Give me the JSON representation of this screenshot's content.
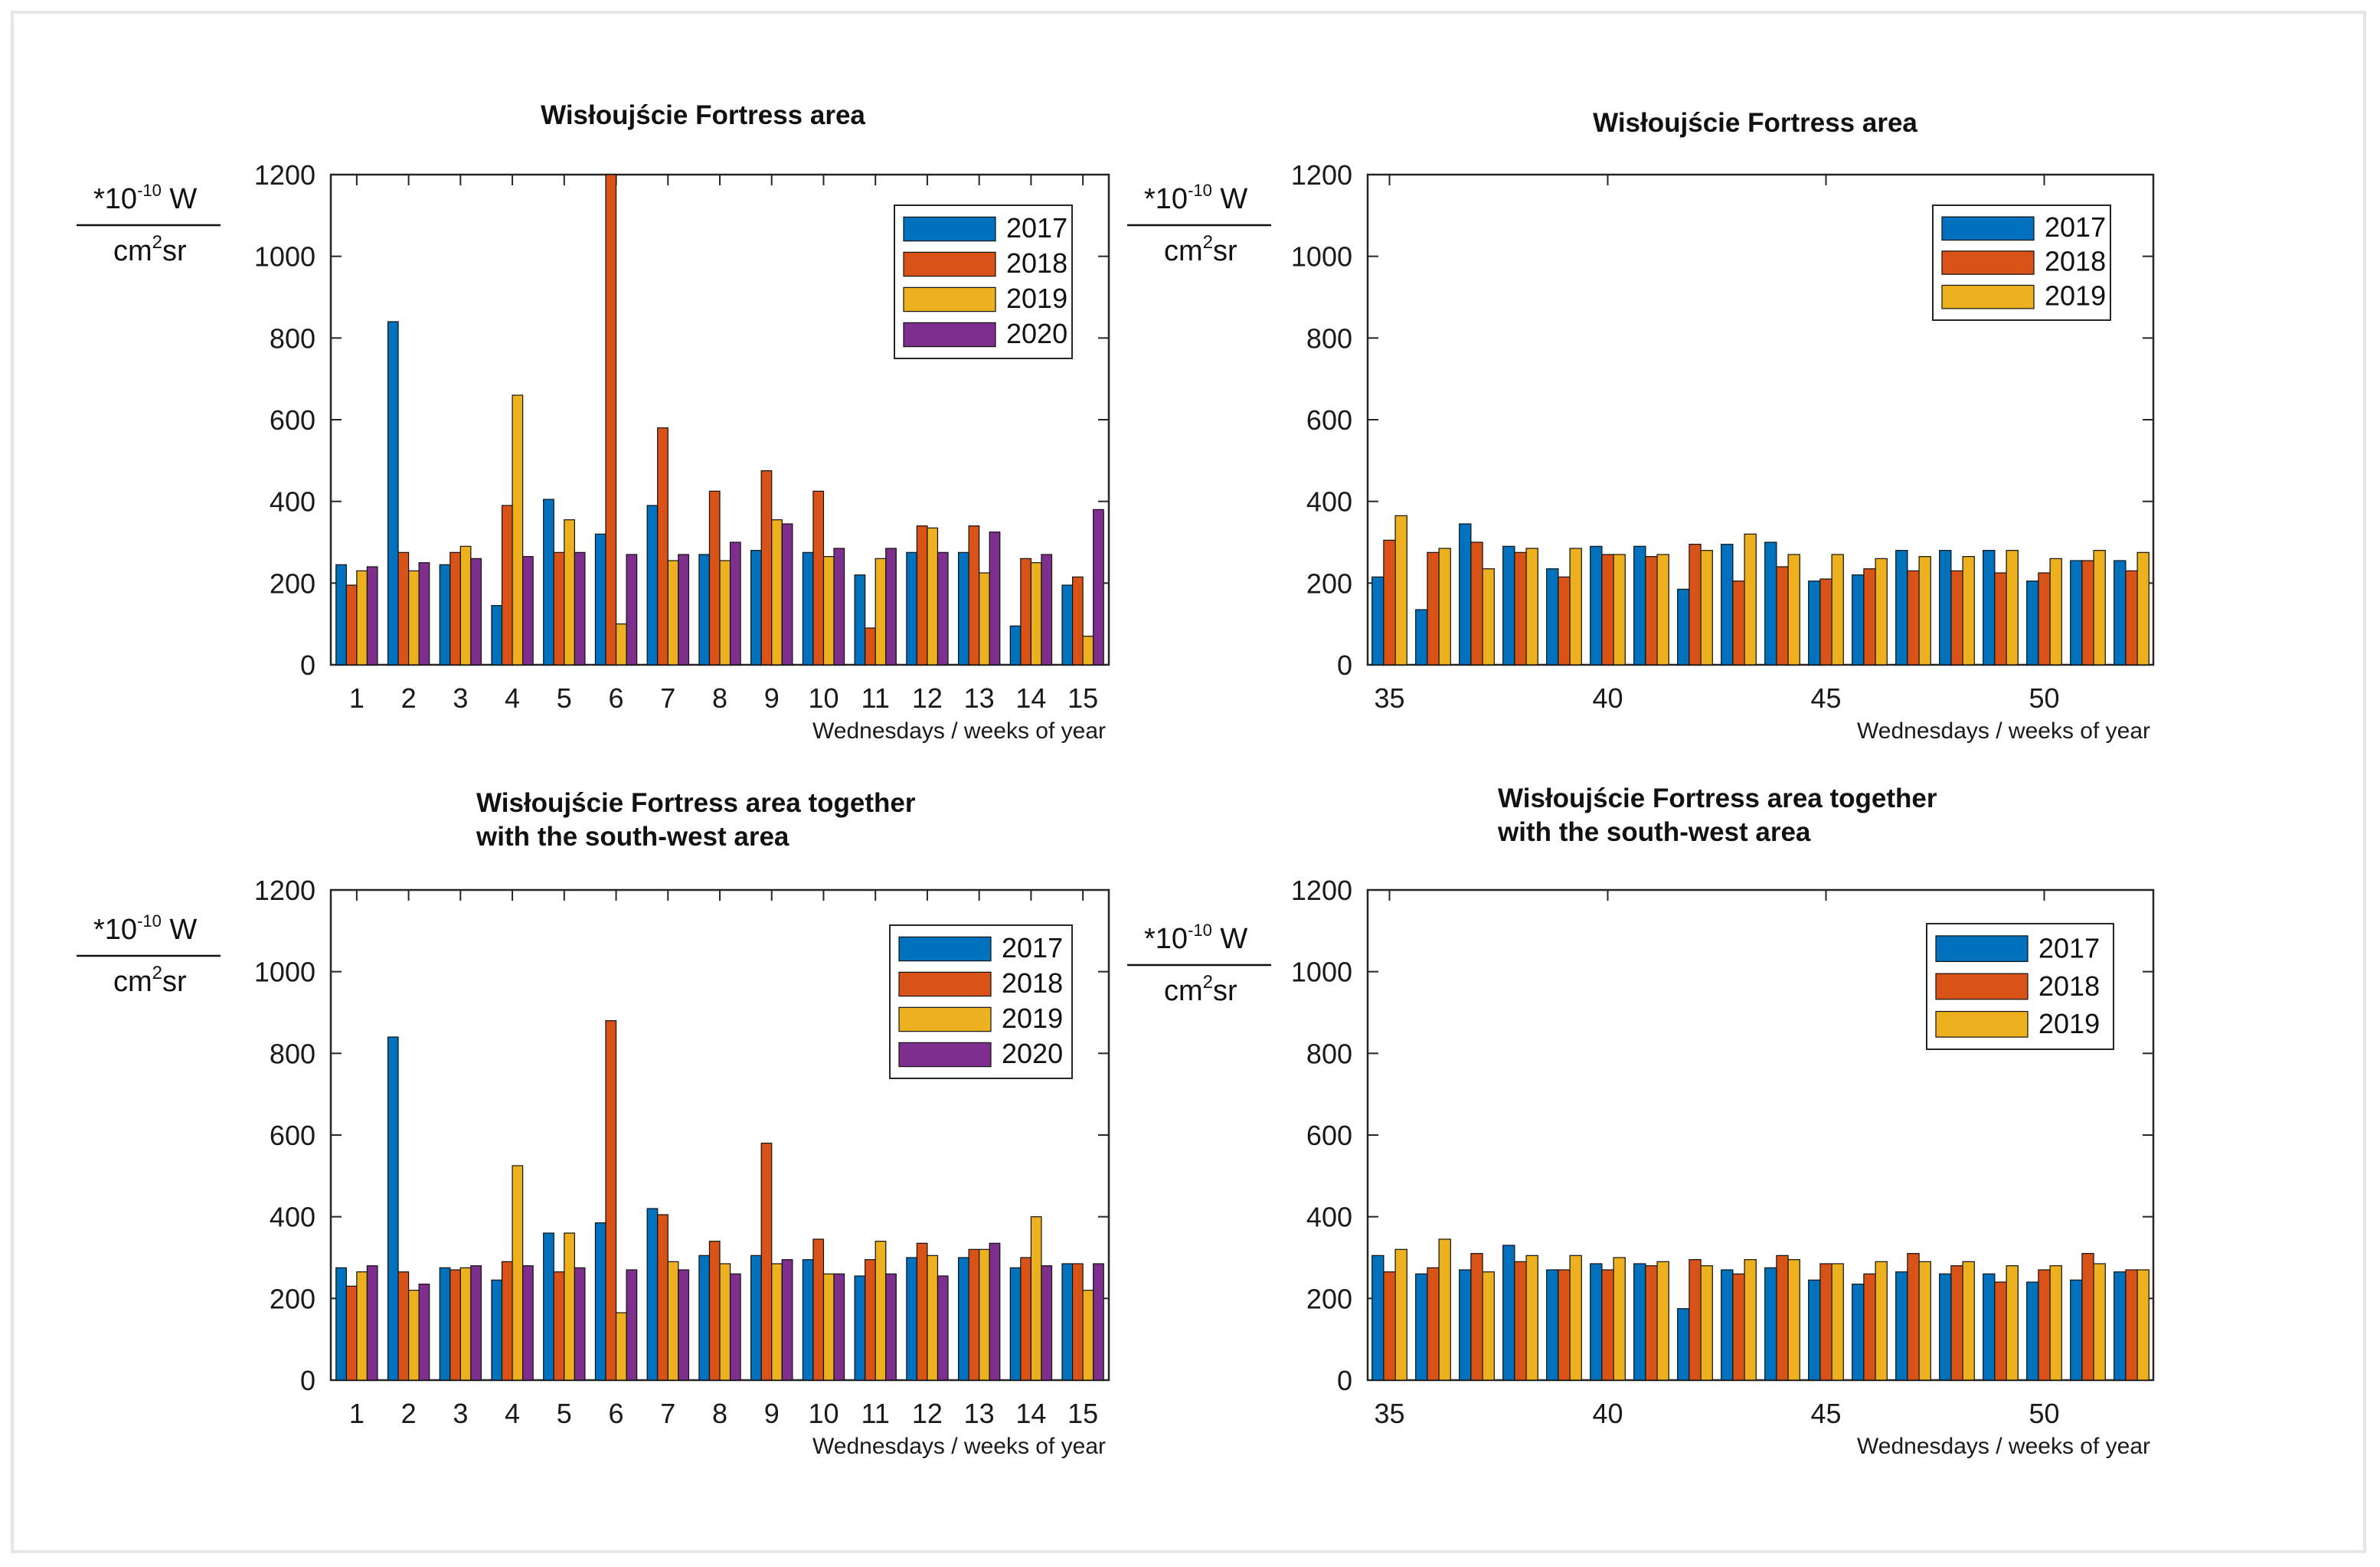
{
  "colors": {
    "2017": "#0072BD",
    "2018": "#D95319",
    "2019": "#EDB120",
    "2020": "#7E2F8E"
  },
  "unit_label": {
    "prefix": "*10",
    "exponent": "-10",
    "unit": " W",
    "denominator_base": "cm",
    "denominator_exp": "2",
    "denominator_tail": "sr"
  },
  "chart_data": [
    {
      "type": "bar",
      "title": [
        "Wisłoujście Fortress area"
      ],
      "xlabel": "Wednesdays / weeks of year",
      "ylim": [
        0,
        1200
      ],
      "yticks": [
        0,
        200,
        400,
        600,
        800,
        1000,
        1200
      ],
      "categories": [
        1,
        2,
        3,
        4,
        5,
        6,
        7,
        8,
        9,
        10,
        11,
        12,
        13,
        14,
        15
      ],
      "xticks": [
        1,
        2,
        3,
        4,
        5,
        6,
        7,
        8,
        9,
        10,
        11,
        12,
        13,
        14,
        15
      ],
      "legend": "top-right",
      "series": [
        {
          "name": "2017",
          "values": [
            245,
            840,
            245,
            145,
            405,
            320,
            390,
            270,
            280,
            275,
            220,
            275,
            275,
            95,
            195
          ]
        },
        {
          "name": "2018",
          "values": [
            195,
            275,
            275,
            390,
            275,
            1200,
            580,
            425,
            475,
            425,
            90,
            340,
            340,
            260,
            215
          ]
        },
        {
          "name": "2019",
          "values": [
            230,
            230,
            290,
            660,
            355,
            100,
            255,
            255,
            355,
            265,
            260,
            335,
            225,
            250,
            70
          ]
        },
        {
          "name": "2020",
          "values": [
            240,
            250,
            260,
            265,
            275,
            270,
            270,
            300,
            345,
            285,
            285,
            275,
            325,
            270,
            380
          ]
        }
      ]
    },
    {
      "type": "bar",
      "title": [
        "Wisłoujście Fortress area"
      ],
      "xlabel": "Wednesdays / weeks of year",
      "ylim": [
        0,
        1200
      ],
      "yticks": [
        0,
        200,
        400,
        600,
        800,
        1000,
        1200
      ],
      "categories": [
        35,
        36,
        37,
        38,
        39,
        40,
        41,
        42,
        43,
        44,
        45,
        46,
        47,
        48,
        49,
        50,
        51,
        52
      ],
      "xticks": [
        35,
        40,
        45,
        50
      ],
      "legend": "top-right",
      "series": [
        {
          "name": "2017",
          "values": [
            215,
            135,
            345,
            290,
            235,
            290,
            290,
            185,
            295,
            300,
            205,
            220,
            280,
            280,
            280,
            205,
            255,
            255
          ]
        },
        {
          "name": "2018",
          "values": [
            305,
            275,
            300,
            275,
            215,
            270,
            265,
            295,
            205,
            240,
            210,
            235,
            230,
            230,
            225,
            225,
            255,
            230
          ]
        },
        {
          "name": "2019",
          "values": [
            365,
            285,
            235,
            285,
            285,
            270,
            270,
            280,
            320,
            270,
            270,
            260,
            265,
            265,
            280,
            260,
            280,
            275
          ]
        }
      ]
    },
    {
      "type": "bar",
      "title": [
        "Wisłoujście Fortress area together",
        "with the south-west area"
      ],
      "xlabel": "Wednesdays / weeks of year",
      "ylim": [
        0,
        1200
      ],
      "yticks": [
        0,
        200,
        400,
        600,
        800,
        1000,
        1200
      ],
      "categories": [
        1,
        2,
        3,
        4,
        5,
        6,
        7,
        8,
        9,
        10,
        11,
        12,
        13,
        14,
        15
      ],
      "xticks": [
        1,
        2,
        3,
        4,
        5,
        6,
        7,
        8,
        9,
        10,
        11,
        12,
        13,
        14,
        15
      ],
      "legend": "top-right",
      "series": [
        {
          "name": "2017",
          "values": [
            275,
            840,
            275,
            245,
            360,
            385,
            420,
            305,
            305,
            295,
            255,
            300,
            300,
            275,
            285
          ]
        },
        {
          "name": "2018",
          "values": [
            230,
            265,
            270,
            290,
            265,
            880,
            405,
            340,
            580,
            345,
            295,
            335,
            320,
            300,
            285
          ]
        },
        {
          "name": "2019",
          "values": [
            265,
            220,
            275,
            525,
            360,
            165,
            290,
            285,
            285,
            260,
            340,
            305,
            320,
            400,
            220
          ]
        },
        {
          "name": "2020",
          "values": [
            280,
            235,
            280,
            280,
            275,
            270,
            270,
            260,
            295,
            260,
            260,
            255,
            335,
            280,
            285
          ]
        }
      ]
    },
    {
      "type": "bar",
      "title": [
        "Wisłoujście Fortress area together",
        "with the south-west area"
      ],
      "xlabel": "Wednesdays / weeks of year",
      "ylim": [
        0,
        1200
      ],
      "yticks": [
        0,
        200,
        400,
        600,
        800,
        1000,
        1200
      ],
      "categories": [
        35,
        36,
        37,
        38,
        39,
        40,
        41,
        42,
        43,
        44,
        45,
        46,
        47,
        48,
        49,
        50,
        51,
        52
      ],
      "xticks": [
        35,
        40,
        45,
        50
      ],
      "legend": "top-right",
      "series": [
        {
          "name": "2017",
          "values": [
            305,
            260,
            270,
            330,
            270,
            285,
            285,
            175,
            270,
            275,
            245,
            235,
            265,
            260,
            260,
            240,
            245,
            265
          ]
        },
        {
          "name": "2018",
          "values": [
            265,
            275,
            310,
            290,
            270,
            270,
            280,
            295,
            260,
            305,
            285,
            260,
            310,
            280,
            240,
            270,
            310,
            270
          ]
        },
        {
          "name": "2019",
          "values": [
            320,
            345,
            265,
            305,
            305,
            300,
            290,
            280,
            295,
            295,
            285,
            290,
            290,
            290,
            280,
            280,
            285,
            270
          ]
        }
      ]
    }
  ]
}
